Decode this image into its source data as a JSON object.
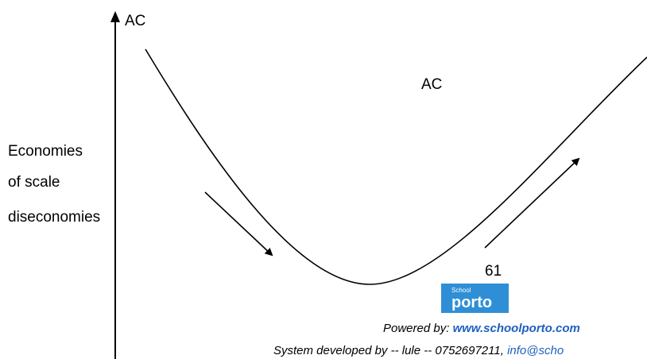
{
  "axis_label": "AC",
  "curve_label": "AC",
  "annotations": [
    "Economies",
    "of scale",
    "diseconomies"
  ],
  "page_number": "61",
  "logo": {
    "top": "School",
    "main": "porto"
  },
  "footer": {
    "powered_by_label": "Powered by:",
    "powered_by_link": "www.schoolporto.com",
    "developer": "System developed by  -- lule -- 0752697211, ",
    "email": "info@scho"
  }
}
